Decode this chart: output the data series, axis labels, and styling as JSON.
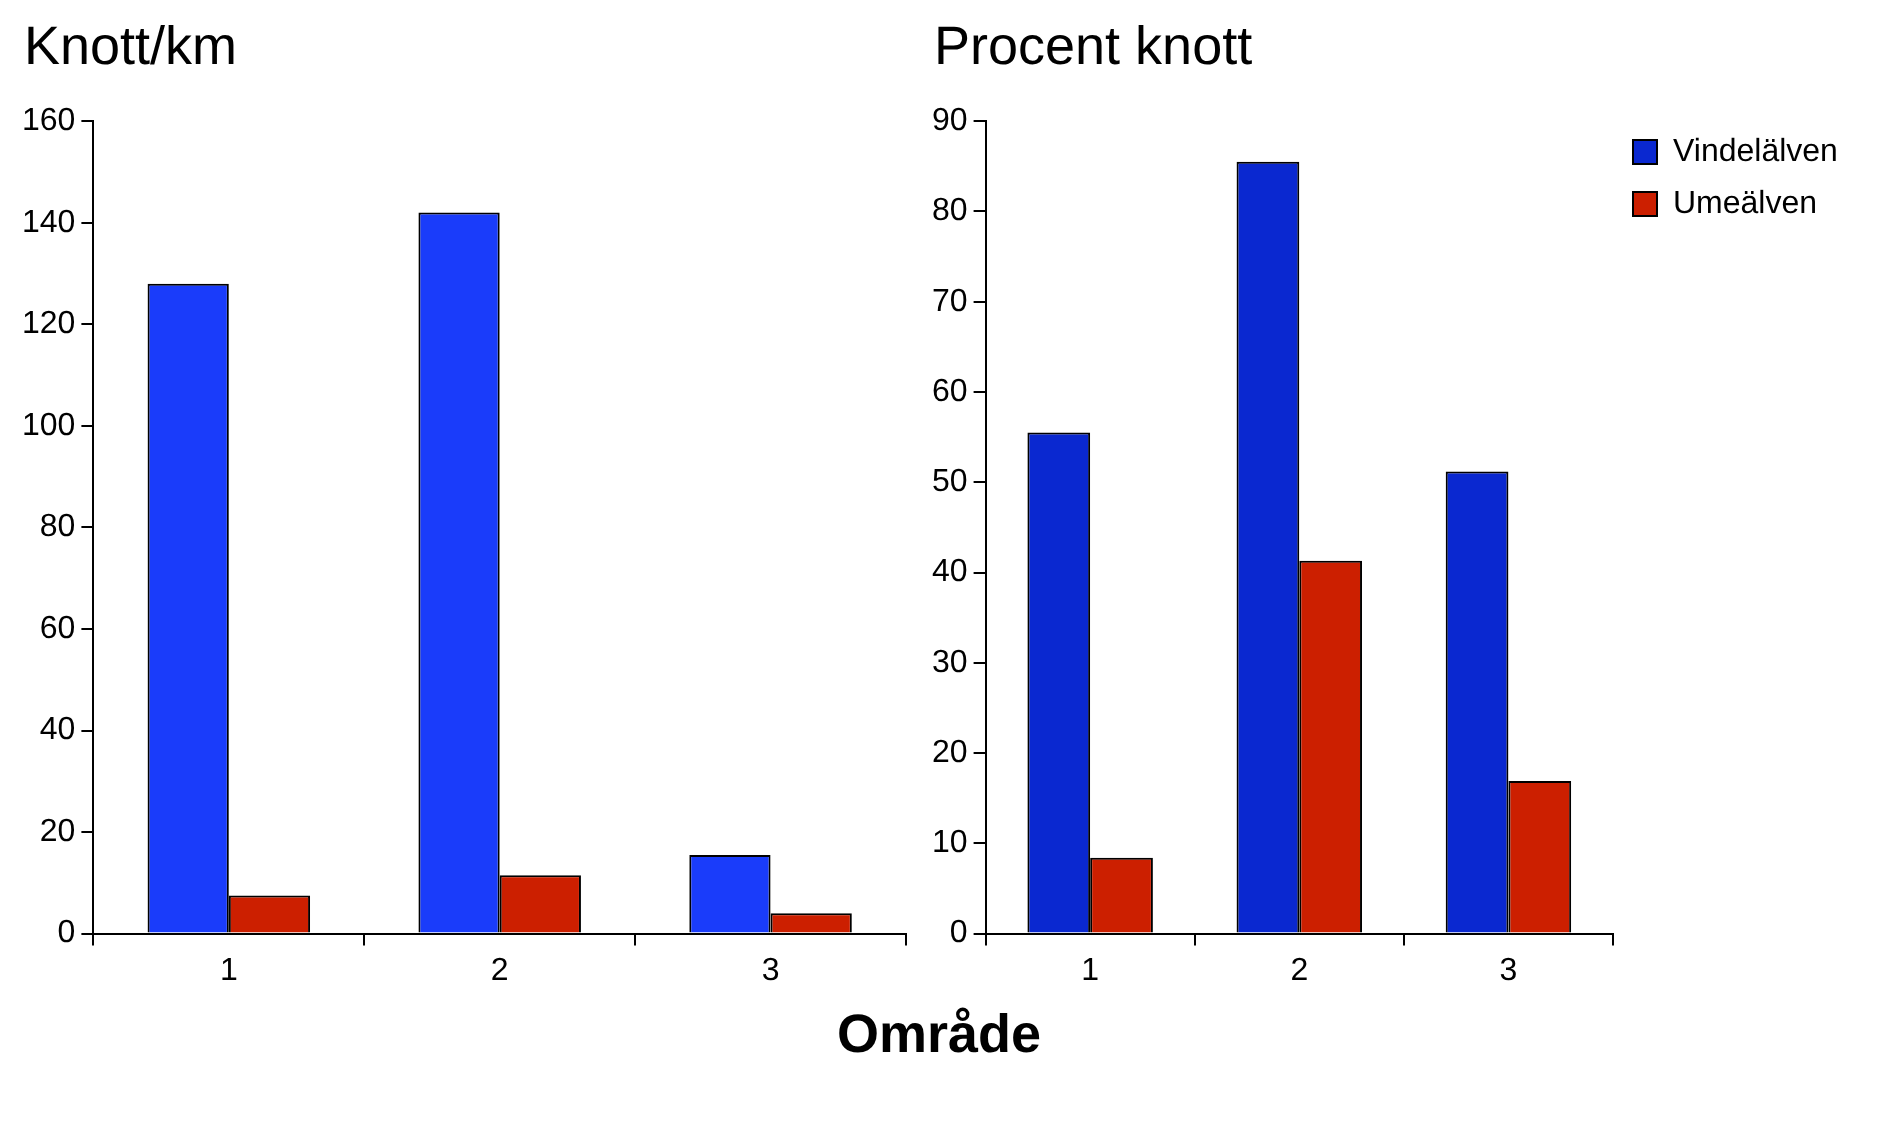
{
  "chart_data": [
    {
      "type": "bar",
      "title": "Knott/km",
      "xlabel": "Område",
      "categories": [
        "1",
        "2",
        "3"
      ],
      "series": [
        {
          "color": "#1a3cfa",
          "values": [
            128,
            142,
            15.5
          ]
        },
        {
          "color": "#cc1f00",
          "values": [
            7.5,
            11.5,
            4
          ]
        }
      ],
      "ylim": [
        0,
        160
      ],
      "yticks": [
        0,
        20,
        40,
        60,
        80,
        100,
        120,
        140,
        160
      ],
      "grid": false,
      "legend": false
    },
    {
      "type": "bar",
      "title": "Procent knott",
      "categories": [
        "1",
        "2",
        "3"
      ],
      "series": [
        {
          "name": "Vindelälven",
          "color": "#0a28d0",
          "values": [
            55.5,
            85.5,
            51.2
          ]
        },
        {
          "name": "Umeälven",
          "color": "#cc1f00",
          "values": [
            8.4,
            41.3,
            16.9
          ]
        }
      ],
      "ylim": [
        0,
        90
      ],
      "yticks": [
        0,
        10,
        20,
        30,
        40,
        50,
        60,
        70,
        80,
        90
      ],
      "grid": false,
      "legend": "right"
    }
  ]
}
